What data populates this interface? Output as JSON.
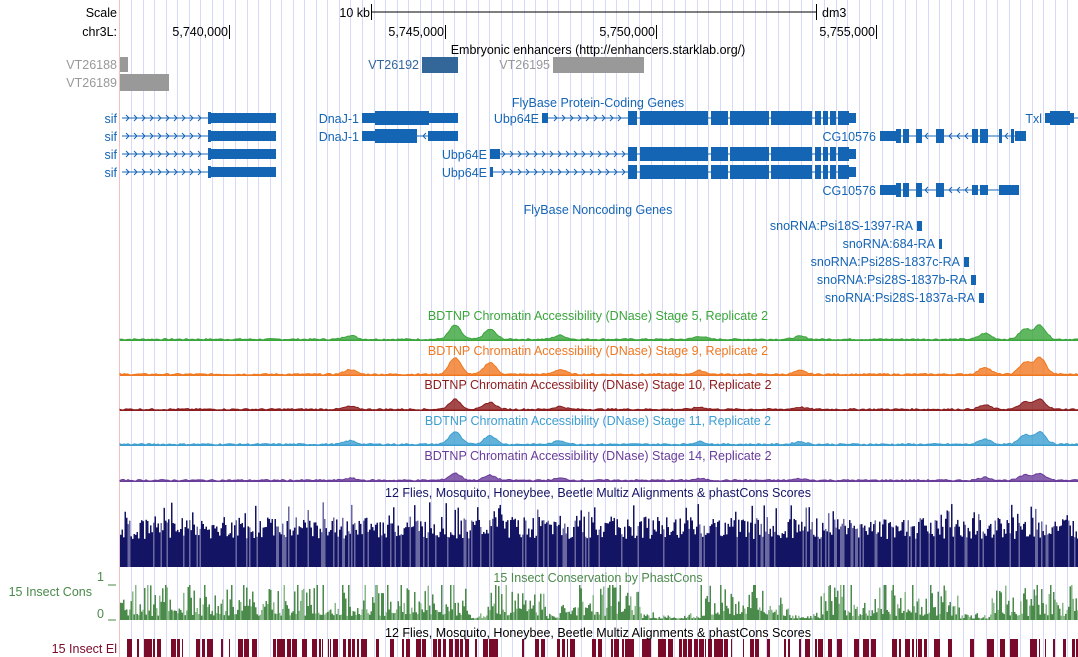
{
  "ruler": {
    "scale_label": "Scale",
    "chrom_label": "chr3L:",
    "scale_bar": "10 kb",
    "assembly": "dm3",
    "ticks": [
      "5,740,000",
      "5,745,000",
      "5,750,000",
      "5,755,000"
    ]
  },
  "enhancers": {
    "title": "Embryonic enhancers (http://enhancers.starklab.org/)",
    "items": [
      "VT26188",
      "VT26189",
      "VT26192",
      "VT26195"
    ]
  },
  "protein_genes": {
    "title": "FlyBase Protein-Coding Genes",
    "labels": {
      "sif": "sif",
      "dnaj": "DnaJ-1",
      "ubp": "Ubp64E",
      "cg": "CG10576",
      "txl": "Txl"
    }
  },
  "noncoding": {
    "title": "FlyBase Noncoding Genes",
    "items": [
      "snoRNA:Psi18S-1397-RA",
      "snoRNA:684-RA",
      "snoRNA:Psi28S-1837c-RA",
      "snoRNA:Psi28S-1837b-RA",
      "snoRNA:Psi28S-1837a-RA"
    ]
  },
  "dnase": [
    {
      "title": "BDTNP Chromatin Accessibility (DNase) Stage 5, Replicate 2",
      "color": "#3aa53a"
    },
    {
      "title": "BDTNP Chromatin Accessibility (DNase) Stage 9, Replicate 2",
      "color": "#f07820"
    },
    {
      "title": "BDTNP Chromatin Accessibility (DNase) Stage 10, Replicate 2",
      "color": "#8c1c1c"
    },
    {
      "title": "BDTNP Chromatin Accessibility (DNase) Stage 11, Replicate 2",
      "color": "#3c9fd0"
    },
    {
      "title": "BDTNP Chromatin Accessibility (DNase) Stage 14, Replicate 2",
      "color": "#6a3c9a"
    }
  ],
  "multiz": {
    "title": "12 Flies, Mosquito, Honeybee, Beetle Multiz Alignments & phastCons Scores",
    "color": "#141464"
  },
  "cons": {
    "title": "15 Insect Conservation by PhastCons",
    "label": "15 Insect Cons",
    "max": "1",
    "min": "0",
    "color": "#4a8a4a"
  },
  "elements": {
    "title": "12 Flies, Mosquito, Honeybee, Beetle Multiz Alignments & phastCons Scores",
    "label": "15 Insect El",
    "color": "#7a0a2a"
  },
  "colors": {
    "gene": "#1565b5",
    "enhancer_gray": "#999999",
    "enhancer_blue": "#336699",
    "grid": "#d8d8f8"
  }
}
